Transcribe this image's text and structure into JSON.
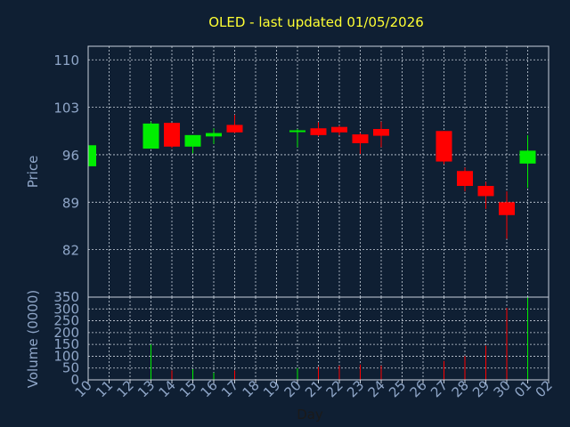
{
  "chart_data": {
    "type": "candlestick",
    "title": "OLED - last updated 01/05/2026",
    "price_axis": {
      "label": "Price",
      "ylim": [
        75,
        112
      ],
      "ticks": [
        "110",
        "103",
        "96",
        "89",
        "82"
      ]
    },
    "volume_axis": {
      "label": "Volume (0000)",
      "ylim": [
        0,
        350
      ],
      "ticks": [
        "350",
        "300",
        "250",
        "200",
        "150",
        "100",
        "50",
        "0"
      ]
    },
    "x_axis": {
      "label": "Day",
      "ticks": [
        "10",
        "11",
        "12",
        "13",
        "14",
        "15",
        "16",
        "17",
        "18",
        "19",
        "20",
        "21",
        "22",
        "23",
        "24",
        "25",
        "26",
        "27",
        "28",
        "29",
        "30",
        "01",
        "02"
      ]
    },
    "grid": true,
    "colors": {
      "up": "#00ee00",
      "down": "#ff0000",
      "title": "#ffff33",
      "background": "#0f1f33"
    },
    "candles": [
      {
        "day": "10",
        "open": 94.3,
        "high": 97.4,
        "low": 94.3,
        "close": 97.4,
        "volume": 0
      },
      {
        "day": "13",
        "open": 96.9,
        "high": 100.9,
        "low": 96.9,
        "close": 100.6,
        "volume": 150
      },
      {
        "day": "14",
        "open": 100.7,
        "high": 100.7,
        "low": 97.0,
        "close": 97.2,
        "volume": 40
      },
      {
        "day": "15",
        "open": 97.2,
        "high": 98.9,
        "low": 96.2,
        "close": 98.9,
        "volume": 45
      },
      {
        "day": "16",
        "open": 98.7,
        "high": 99.9,
        "low": 97.6,
        "close": 99.2,
        "volume": 30
      },
      {
        "day": "17",
        "open": 100.4,
        "high": 101.9,
        "low": 99.2,
        "close": 99.3,
        "volume": 40
      },
      {
        "day": "20",
        "open": 99.4,
        "high": 99.8,
        "low": 97.1,
        "close": 99.6,
        "volume": 50
      },
      {
        "day": "21",
        "open": 99.9,
        "high": 100.8,
        "low": 98.7,
        "close": 98.9,
        "volume": 55
      },
      {
        "day": "22",
        "open": 100.1,
        "high": 100.3,
        "low": 98.9,
        "close": 99.3,
        "volume": 60
      },
      {
        "day": "23",
        "open": 99.0,
        "high": 99.2,
        "low": 96.1,
        "close": 97.7,
        "volume": 65
      },
      {
        "day": "24",
        "open": 99.8,
        "high": 100.9,
        "low": 97.1,
        "close": 98.8,
        "volume": 60
      },
      {
        "day": "27",
        "open": 99.5,
        "high": 99.5,
        "low": 94.6,
        "close": 95.0,
        "volume": 80
      },
      {
        "day": "28",
        "open": 93.6,
        "high": 94.1,
        "low": 90.6,
        "close": 91.4,
        "volume": 100
      },
      {
        "day": "29",
        "open": 91.4,
        "high": 92.0,
        "low": 88.0,
        "close": 89.9,
        "volume": 145
      },
      {
        "day": "30",
        "open": 89.0,
        "high": 90.6,
        "low": 83.6,
        "close": 87.1,
        "volume": 305
      },
      {
        "day": "01",
        "open": 94.7,
        "high": 98.9,
        "low": 91.1,
        "close": 96.6,
        "volume": 350
      }
    ]
  }
}
